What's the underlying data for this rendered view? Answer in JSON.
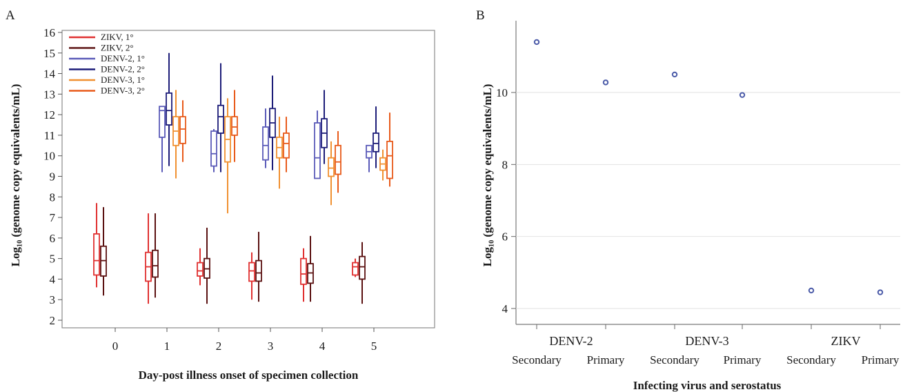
{
  "panels": {
    "a_label": "A",
    "b_label": "B"
  },
  "chart_data": [
    {
      "type": "box",
      "xlabel": "Day-post illness onset of specimen collection",
      "ylabel": "Log₁₀ (genome copy equivalents/mL)",
      "ylim": [
        2,
        16
      ],
      "yticks": [
        "2",
        "3",
        "4",
        "5",
        "6",
        "7",
        "8",
        "9",
        "10",
        "11",
        "12",
        "13",
        "14",
        "15",
        "16"
      ],
      "categories": [
        "0",
        "1",
        "2",
        "3",
        "4",
        "5"
      ],
      "legend_position": "top-left",
      "series": [
        {
          "name": "ZIKV, 1°",
          "color": "#e03030",
          "boxes": [
            {
              "day": 0,
              "min": 3.6,
              "q1": 4.2,
              "median": 4.9,
              "q3": 6.2,
              "max": 7.7
            },
            {
              "day": 1,
              "min": 2.8,
              "q1": 3.9,
              "median": 4.6,
              "q3": 5.3,
              "max": 7.2
            },
            {
              "day": 2,
              "min": 3.7,
              "q1": 4.15,
              "median": 4.4,
              "q3": 4.8,
              "max": 5.5
            },
            {
              "day": 3,
              "min": 3.0,
              "q1": 3.9,
              "median": 4.4,
              "q3": 4.8,
              "max": 5.3
            },
            {
              "day": 4,
              "min": 2.9,
              "q1": 3.75,
              "median": 4.25,
              "q3": 5.0,
              "max": 5.5
            },
            {
              "day": 5,
              "min": 4.1,
              "q1": 4.2,
              "median": 4.6,
              "q3": 4.8,
              "max": 5.0
            }
          ]
        },
        {
          "name": "ZIKV, 2°",
          "color": "#5a1010",
          "boxes": [
            {
              "day": 0,
              "min": 3.2,
              "q1": 4.15,
              "median": 4.9,
              "q3": 5.6,
              "max": 7.5
            },
            {
              "day": 1,
              "min": 3.1,
              "q1": 4.1,
              "median": 4.65,
              "q3": 5.4,
              "max": 7.2
            },
            {
              "day": 2,
              "min": 2.8,
              "q1": 4.05,
              "median": 4.5,
              "q3": 5.0,
              "max": 6.5
            },
            {
              "day": 3,
              "min": 2.9,
              "q1": 3.9,
              "median": 4.3,
              "q3": 4.9,
              "max": 6.3
            },
            {
              "day": 4,
              "min": 2.9,
              "q1": 3.8,
              "median": 4.3,
              "q3": 4.75,
              "max": 6.1
            },
            {
              "day": 5,
              "min": 2.8,
              "q1": 4.0,
              "median": 4.6,
              "q3": 5.1,
              "max": 5.8
            }
          ]
        },
        {
          "name": "DENV-2, 1°",
          "color": "#5a5ab8",
          "boxes": [
            {
              "day": 1,
              "min": 9.2,
              "q1": 10.9,
              "median": 12.2,
              "q3": 12.4,
              "max": 12.4
            },
            {
              "day": 2,
              "min": 9.2,
              "q1": 9.5,
              "median": 10.1,
              "q3": 11.2,
              "max": 11.3
            },
            {
              "day": 3,
              "min": 9.4,
              "q1": 9.8,
              "median": 10.5,
              "q3": 11.4,
              "max": 12.3
            },
            {
              "day": 4,
              "min": 8.9,
              "q1": 8.9,
              "median": 9.9,
              "q3": 11.6,
              "max": 12.2
            },
            {
              "day": 5,
              "min": 9.2,
              "q1": 9.9,
              "median": 10.2,
              "q3": 10.5,
              "max": 10.5
            }
          ]
        },
        {
          "name": "DENV-2, 2°",
          "color": "#1c1c78",
          "boxes": [
            {
              "day": 1,
              "min": 9.5,
              "q1": 11.5,
              "median": 12.2,
              "q3": 13.05,
              "max": 15.0
            },
            {
              "day": 2,
              "min": 9.2,
              "q1": 11.1,
              "median": 11.9,
              "q3": 12.45,
              "max": 14.5
            },
            {
              "day": 3,
              "min": 9.3,
              "q1": 10.9,
              "median": 11.6,
              "q3": 12.3,
              "max": 13.9
            },
            {
              "day": 4,
              "min": 9.6,
              "q1": 10.4,
              "median": 11.1,
              "q3": 11.8,
              "max": 13.2
            },
            {
              "day": 5,
              "min": 9.4,
              "q1": 10.2,
              "median": 10.6,
              "q3": 11.1,
              "max": 12.4
            }
          ]
        },
        {
          "name": "DENV-3, 1°",
          "color": "#f09030",
          "boxes": [
            {
              "day": 1,
              "min": 8.9,
              "q1": 10.5,
              "median": 11.2,
              "q3": 11.9,
              "max": 13.2
            },
            {
              "day": 2,
              "min": 7.2,
              "q1": 9.7,
              "median": 10.8,
              "q3": 11.9,
              "max": 12.8
            },
            {
              "day": 3,
              "min": 8.4,
              "q1": 9.9,
              "median": 10.4,
              "q3": 10.9,
              "max": 11.9
            },
            {
              "day": 4,
              "min": 7.6,
              "q1": 9.0,
              "median": 9.4,
              "q3": 9.9,
              "max": 10.7
            },
            {
              "day": 5,
              "min": 8.8,
              "q1": 9.3,
              "median": 9.6,
              "q3": 9.9,
              "max": 10.3
            }
          ]
        },
        {
          "name": "DENV-3, 2°",
          "color": "#e85a1a",
          "boxes": [
            {
              "day": 1,
              "min": 9.7,
              "q1": 10.6,
              "median": 11.3,
              "q3": 11.9,
              "max": 12.7
            },
            {
              "day": 2,
              "min": 9.7,
              "q1": 11.0,
              "median": 11.4,
              "q3": 11.9,
              "max": 13.2
            },
            {
              "day": 3,
              "min": 9.2,
              "q1": 9.9,
              "median": 10.6,
              "q3": 11.1,
              "max": 11.9
            },
            {
              "day": 4,
              "min": 8.2,
              "q1": 9.1,
              "median": 9.7,
              "q3": 10.5,
              "max": 11.2
            },
            {
              "day": 5,
              "min": 8.5,
              "q1": 8.9,
              "median": 10.0,
              "q3": 10.7,
              "max": 12.1
            }
          ]
        }
      ]
    },
    {
      "type": "scatter",
      "xlabel": "Infecting virus and serostatus",
      "ylabel": "Log₁₀ (genome copy equivalents/mL)",
      "ylim": [
        3.7,
        11.8
      ],
      "yticks": [
        "4",
        "6",
        "8",
        "10"
      ],
      "grid": true,
      "groups": [
        "DENV-2",
        "DENV-3",
        "ZIKV"
      ],
      "subcategories": [
        "Secondary",
        "Primary",
        "Secondary",
        "Primary",
        "Secondary",
        "Primary"
      ],
      "values": [
        11.4,
        10.28,
        10.5,
        9.93,
        4.5,
        4.45
      ],
      "marker_color": "#4a5aa8"
    }
  ]
}
